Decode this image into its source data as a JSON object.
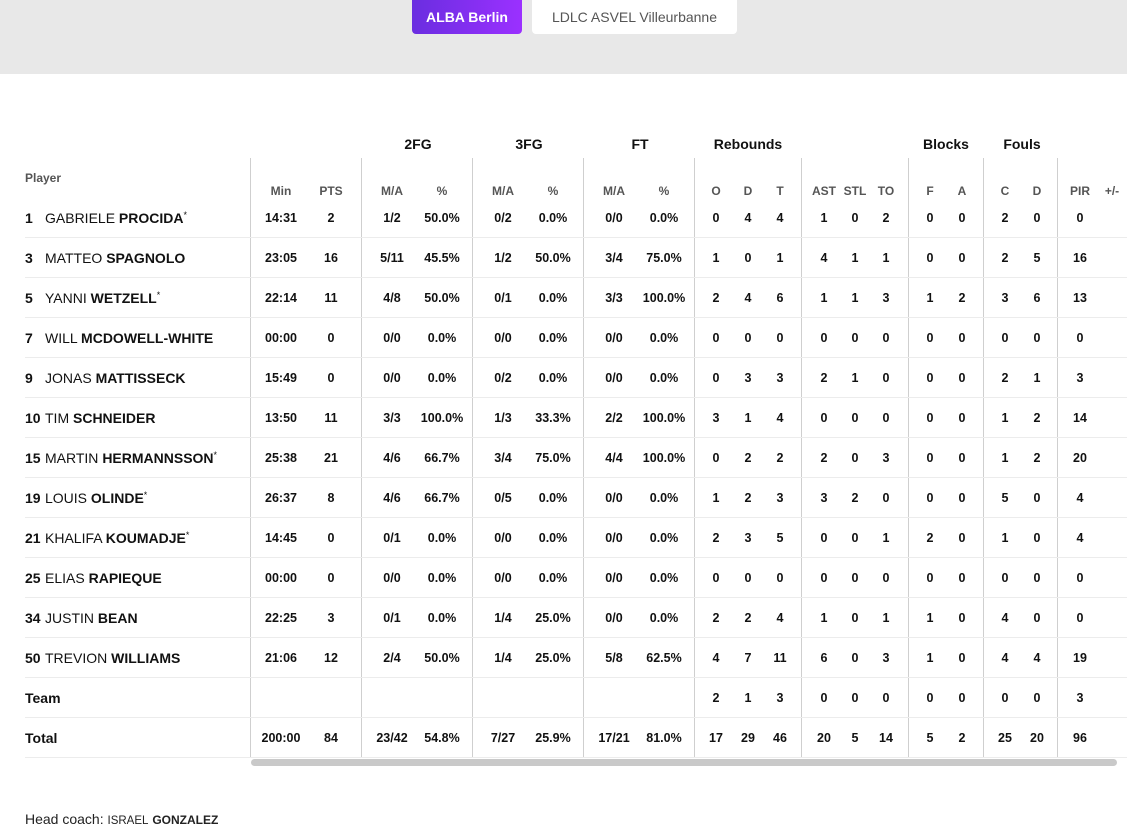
{
  "tabs": [
    {
      "label": "ALBA Berlin",
      "active": true
    },
    {
      "label": "LDLC ASVEL Villeurbanne",
      "active": false
    }
  ],
  "colors": {
    "accent_start": "#6a2ee0",
    "accent_end": "#9b30ff",
    "header_bg": "#e8e8e8"
  },
  "groups": {
    "fg2": "2FG",
    "fg3": "3FG",
    "ft": "FT",
    "rebounds": "Rebounds",
    "blocks": "Blocks",
    "fouls": "Fouls"
  },
  "columns": {
    "player": "Player",
    "min": "Min",
    "pts": "PTS",
    "fg2_ma": "M/A",
    "fg2_pct": "%",
    "fg3_ma": "M/A",
    "fg3_pct": "%",
    "ft_ma": "M/A",
    "ft_pct": "%",
    "reb_o": "O",
    "reb_d": "D",
    "reb_t": "T",
    "ast": "AST",
    "stl": "STL",
    "to": "TO",
    "blk_f": "F",
    "blk_a": "A",
    "foul_c": "C",
    "foul_d": "D",
    "pir": "PIR",
    "pm": "+/-"
  },
  "players": [
    {
      "num": "1",
      "first": "GABRIELE",
      "last": "PROCIDA",
      "starter": true,
      "min": "14:31",
      "pts": "2",
      "fg2": "1/2",
      "fg2p": "50.0%",
      "fg3": "0/2",
      "fg3p": "0.0%",
      "ft": "0/0",
      "ftp": "0.0%",
      "o": "0",
      "d": "4",
      "t": "4",
      "ast": "1",
      "stl": "0",
      "to": "2",
      "bf": "0",
      "ba": "0",
      "fc": "2",
      "fd": "0",
      "pir": "0",
      "pm": ""
    },
    {
      "num": "3",
      "first": "MATTEO",
      "last": "SPAGNOLO",
      "starter": false,
      "min": "23:05",
      "pts": "16",
      "fg2": "5/11",
      "fg2p": "45.5%",
      "fg3": "1/2",
      "fg3p": "50.0%",
      "ft": "3/4",
      "ftp": "75.0%",
      "o": "1",
      "d": "0",
      "t": "1",
      "ast": "4",
      "stl": "1",
      "to": "1",
      "bf": "0",
      "ba": "0",
      "fc": "2",
      "fd": "5",
      "pir": "16",
      "pm": ""
    },
    {
      "num": "5",
      "first": "YANNI",
      "last": "WETZELL",
      "starter": true,
      "min": "22:14",
      "pts": "11",
      "fg2": "4/8",
      "fg2p": "50.0%",
      "fg3": "0/1",
      "fg3p": "0.0%",
      "ft": "3/3",
      "ftp": "100.0%",
      "o": "2",
      "d": "4",
      "t": "6",
      "ast": "1",
      "stl": "1",
      "to": "3",
      "bf": "1",
      "ba": "2",
      "fc": "3",
      "fd": "6",
      "pir": "13",
      "pm": ""
    },
    {
      "num": "7",
      "first": "WILL",
      "last": "MCDOWELL-WHITE",
      "starter": false,
      "min": "00:00",
      "pts": "0",
      "fg2": "0/0",
      "fg2p": "0.0%",
      "fg3": "0/0",
      "fg3p": "0.0%",
      "ft": "0/0",
      "ftp": "0.0%",
      "o": "0",
      "d": "0",
      "t": "0",
      "ast": "0",
      "stl": "0",
      "to": "0",
      "bf": "0",
      "ba": "0",
      "fc": "0",
      "fd": "0",
      "pir": "0",
      "pm": ""
    },
    {
      "num": "9",
      "first": "JONAS",
      "last": "MATTISSECK",
      "starter": false,
      "min": "15:49",
      "pts": "0",
      "fg2": "0/0",
      "fg2p": "0.0%",
      "fg3": "0/2",
      "fg3p": "0.0%",
      "ft": "0/0",
      "ftp": "0.0%",
      "o": "0",
      "d": "3",
      "t": "3",
      "ast": "2",
      "stl": "1",
      "to": "0",
      "bf": "0",
      "ba": "0",
      "fc": "2",
      "fd": "1",
      "pir": "3",
      "pm": ""
    },
    {
      "num": "10",
      "first": "TIM",
      "last": "SCHNEIDER",
      "starter": false,
      "min": "13:50",
      "pts": "11",
      "fg2": "3/3",
      "fg2p": "100.0%",
      "fg3": "1/3",
      "fg3p": "33.3%",
      "ft": "2/2",
      "ftp": "100.0%",
      "o": "3",
      "d": "1",
      "t": "4",
      "ast": "0",
      "stl": "0",
      "to": "0",
      "bf": "0",
      "ba": "0",
      "fc": "1",
      "fd": "2",
      "pir": "14",
      "pm": ""
    },
    {
      "num": "15",
      "first": "MARTIN",
      "last": "HERMANNSSON",
      "starter": true,
      "min": "25:38",
      "pts": "21",
      "fg2": "4/6",
      "fg2p": "66.7%",
      "fg3": "3/4",
      "fg3p": "75.0%",
      "ft": "4/4",
      "ftp": "100.0%",
      "o": "0",
      "d": "2",
      "t": "2",
      "ast": "2",
      "stl": "0",
      "to": "3",
      "bf": "0",
      "ba": "0",
      "fc": "1",
      "fd": "2",
      "pir": "20",
      "pm": ""
    },
    {
      "num": "19",
      "first": "LOUIS",
      "last": "OLINDE",
      "starter": true,
      "min": "26:37",
      "pts": "8",
      "fg2": "4/6",
      "fg2p": "66.7%",
      "fg3": "0/5",
      "fg3p": "0.0%",
      "ft": "0/0",
      "ftp": "0.0%",
      "o": "1",
      "d": "2",
      "t": "3",
      "ast": "3",
      "stl": "2",
      "to": "0",
      "bf": "0",
      "ba": "0",
      "fc": "5",
      "fd": "0",
      "pir": "4",
      "pm": ""
    },
    {
      "num": "21",
      "first": "KHALIFA",
      "last": "KOUMADJE",
      "starter": true,
      "min": "14:45",
      "pts": "0",
      "fg2": "0/1",
      "fg2p": "0.0%",
      "fg3": "0/0",
      "fg3p": "0.0%",
      "ft": "0/0",
      "ftp": "0.0%",
      "o": "2",
      "d": "3",
      "t": "5",
      "ast": "0",
      "stl": "0",
      "to": "1",
      "bf": "2",
      "ba": "0",
      "fc": "1",
      "fd": "0",
      "pir": "4",
      "pm": ""
    },
    {
      "num": "25",
      "first": "ELIAS",
      "last": "RAPIEQUE",
      "starter": false,
      "min": "00:00",
      "pts": "0",
      "fg2": "0/0",
      "fg2p": "0.0%",
      "fg3": "0/0",
      "fg3p": "0.0%",
      "ft": "0/0",
      "ftp": "0.0%",
      "o": "0",
      "d": "0",
      "t": "0",
      "ast": "0",
      "stl": "0",
      "to": "0",
      "bf": "0",
      "ba": "0",
      "fc": "0",
      "fd": "0",
      "pir": "0",
      "pm": ""
    },
    {
      "num": "34",
      "first": "JUSTIN",
      "last": "BEAN",
      "starter": false,
      "min": "22:25",
      "pts": "3",
      "fg2": "0/1",
      "fg2p": "0.0%",
      "fg3": "1/4",
      "fg3p": "25.0%",
      "ft": "0/0",
      "ftp": "0.0%",
      "o": "2",
      "d": "2",
      "t": "4",
      "ast": "1",
      "stl": "0",
      "to": "1",
      "bf": "1",
      "ba": "0",
      "fc": "4",
      "fd": "0",
      "pir": "0",
      "pm": ""
    },
    {
      "num": "50",
      "first": "TREVION",
      "last": "WILLIAMS",
      "starter": false,
      "min": "21:06",
      "pts": "12",
      "fg2": "2/4",
      "fg2p": "50.0%",
      "fg3": "1/4",
      "fg3p": "25.0%",
      "ft": "5/8",
      "ftp": "62.5%",
      "o": "4",
      "d": "7",
      "t": "11",
      "ast": "6",
      "stl": "0",
      "to": "3",
      "bf": "1",
      "ba": "0",
      "fc": "4",
      "fd": "4",
      "pir": "19",
      "pm": ""
    }
  ],
  "team_row": {
    "label": "Team",
    "min": "",
    "pts": "",
    "fg2": "",
    "fg2p": "",
    "fg3": "",
    "fg3p": "",
    "ft": "",
    "ftp": "",
    "o": "2",
    "d": "1",
    "t": "3",
    "ast": "0",
    "stl": "0",
    "to": "0",
    "bf": "0",
    "ba": "0",
    "fc": "0",
    "fd": "0",
    "pir": "3",
    "pm": ""
  },
  "total_row": {
    "label": "Total",
    "min": "200:00",
    "pts": "84",
    "fg2": "23/42",
    "fg2p": "54.8%",
    "fg3": "7/27",
    "fg3p": "25.9%",
    "ft": "17/21",
    "ftp": "81.0%",
    "o": "17",
    "d": "29",
    "t": "46",
    "ast": "20",
    "stl": "5",
    "to": "14",
    "bf": "5",
    "ba": "2",
    "fc": "25",
    "fd": "20",
    "pir": "96",
    "pm": ""
  },
  "coach": {
    "label": "Head coach:",
    "first": "ISRAEL",
    "last": "GONZALEZ"
  }
}
